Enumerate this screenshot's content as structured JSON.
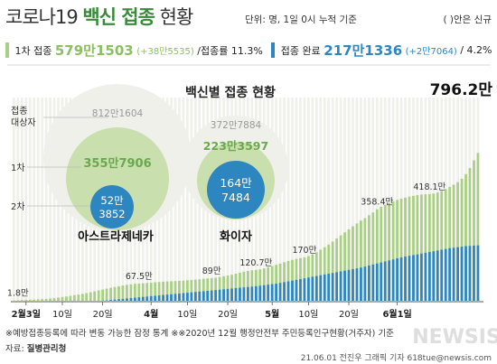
{
  "header": {
    "title_part1": "코로나19 ",
    "title_part2": "백신 접종",
    "title_part3": " 현황",
    "unit_note": "단위: 명, 1일 0시 누적 기준",
    "new_note": "( )안은 신규"
  },
  "stats": {
    "first_label": "1차 접종",
    "first_value": "579만1503",
    "first_new": "(+38만5535)",
    "first_rate": "/접종률 11.3%",
    "complete_label": "접종 완료",
    "complete_value": "217만1336",
    "complete_new": "(+2만7064)",
    "complete_rate": "/ 4.2%"
  },
  "vaccine_panel": {
    "title": "백신별 접종 현황",
    "row_labels": [
      "접종\n대상자",
      "1차",
      "2차"
    ],
    "astrazeneca": {
      "name": "아스트라제네카",
      "target": "812만1604",
      "first": "355만7906",
      "second_line1": "52만",
      "second_line2": "3852"
    },
    "pfizer": {
      "name": "화이자",
      "target": "372만7884",
      "first": "223만3597",
      "second_line1": "164만",
      "second_line2": "7484"
    }
  },
  "colors": {
    "first_dose": "#a9cf85",
    "second_dose": "#2e86c1",
    "target": "#f0f0eb",
    "axis": "#555555"
  },
  "chart_data": {
    "type": "bar",
    "title": "",
    "x_start": "2월26일",
    "series": [
      {
        "name": "1차 접종",
        "color": "#a9cf85",
        "values": [
          0.6,
          1.8,
          2.8,
          3.5,
          4.0,
          4.6,
          5.5,
          6.5,
          7.5,
          8.5,
          10.4,
          12.5,
          14.8,
          17.0,
          19.5,
          22.0,
          24.5,
          27.0,
          30.0,
          33.5,
          37.0,
          40.5,
          44.0,
          47.5,
          51.0,
          54.0,
          57.0,
          60.0,
          62.5,
          64.5,
          66.5,
          67.5,
          68.5,
          69.8,
          71.0,
          72.3,
          73.5,
          74.8,
          75.5,
          76.3,
          77.2,
          78.0,
          79.0,
          80.2,
          81.5,
          83.0,
          84.5,
          86.0,
          87.5,
          89.0,
          90.5,
          93.0,
          96.0,
          99.0,
          102.0,
          106.0,
          110.0,
          114.0,
          117.0,
          119.5,
          120.7,
          123.0,
          127.0,
          131.0,
          136.0,
          141.0,
          146.0,
          151.0,
          156.0,
          160.0,
          164.0,
          167.0,
          170.0,
          175.0,
          182.0,
          190.0,
          200.0,
          210.0,
          220.0,
          232.0,
          244.0,
          256.0,
          268.0,
          280.0,
          292.0,
          303.0,
          314.0,
          324.0,
          335.0,
          346.0,
          358.4,
          368.0,
          376.0,
          383.0,
          389.0,
          395.0,
          400.0,
          404.0,
          408.0,
          411.0,
          414.0,
          416.0,
          417.0,
          418.1,
          420.0,
          424.0,
          430.0,
          438.0,
          446.0,
          455.0,
          465.0,
          478.0,
          496.0,
          520.0,
          550.0,
          579.2
        ]
      },
      {
        "name": "접종 완료",
        "color": "#2e86c1",
        "values": [
          0,
          0,
          0,
          0,
          0,
          0,
          0,
          0,
          0,
          0,
          0,
          0,
          0,
          0,
          0,
          0,
          0,
          0,
          0,
          0,
          0,
          0,
          0.5,
          1.5,
          3.0,
          4.5,
          6.0,
          7.5,
          9.0,
          10.5,
          12.0,
          13.5,
          15.0,
          16.5,
          18.0,
          19.5,
          21.0,
          22.5,
          24.0,
          25.5,
          27.0,
          28.5,
          30.0,
          31.5,
          33.0,
          34.5,
          36.0,
          37.5,
          39.0,
          40.5,
          42.0,
          43.5,
          45.0,
          46.5,
          48.0,
          49.5,
          51.0,
          52.5,
          54.0,
          55.5,
          57.0,
          59.0,
          61.0,
          63.0,
          65.0,
          67.0,
          70.0,
          73.0,
          76.0,
          79.0,
          82.0,
          85.0,
          88.0,
          91.0,
          94.0,
          97.0,
          100.0,
          103.0,
          106.0,
          109.0,
          112.0,
          115.0,
          118.0,
          121.0,
          124.0,
          127.0,
          130.0,
          134.0,
          138.0,
          142.0,
          146.0,
          150.0,
          154.0,
          158.0,
          162.0,
          166.0,
          170.0,
          173.0,
          176.0,
          179.0,
          182.0,
          185.0,
          188.0,
          191.0,
          194.0,
          197.0,
          200.0,
          203.0,
          206.0,
          208.0,
          210.0,
          212.0,
          214.0,
          215.0,
          216.0,
          217.1
        ]
      }
    ],
    "target_total": 796.2,
    "target_total_label": "796.2만",
    "value_labels": [
      {
        "day_index": 1,
        "value": 1.8,
        "text": "1.8만"
      },
      {
        "day_index": 31,
        "value": 67.5,
        "text": "67.5만"
      },
      {
        "day_index": 49,
        "value": 89,
        "text": "89만"
      },
      {
        "day_index": 60,
        "value": 120.7,
        "text": "120.7만"
      },
      {
        "day_index": 72,
        "value": 170,
        "text": "170만"
      },
      {
        "day_index": 90,
        "value": 358.4,
        "text": "358.4만"
      },
      {
        "day_index": 103,
        "value": 418.1,
        "text": "418.1만"
      }
    ],
    "x_ticks": [
      {
        "day_index": 3,
        "text": "2월3일",
        "bold": true
      },
      {
        "day_index": 12,
        "text": "10일",
        "bold": false
      },
      {
        "day_index": 22,
        "text": "20일",
        "bold": false
      },
      {
        "day_index": 34,
        "text": "4월",
        "bold": true
      },
      {
        "day_index": 43,
        "text": "10일",
        "bold": false
      },
      {
        "day_index": 53,
        "text": "20일",
        "bold": false
      },
      {
        "day_index": 64,
        "text": "5월",
        "bold": true
      },
      {
        "day_index": 73,
        "text": "10일",
        "bold": false
      },
      {
        "day_index": 83,
        "text": "20일",
        "bold": false
      },
      {
        "day_index": 95,
        "text": "6월1일",
        "bold": true
      }
    ],
    "ylim": [
      0,
      800
    ]
  },
  "footer": {
    "note": "※예방접종등록에 따라 변동 가능한 잠정 통계  ※※2020년 12월 행정안전부 주민등록인구현황(거주자) 기준",
    "source_label": "자료: ",
    "source": "질병관리청",
    "credit": "21.06.01 전진우 그래픽 기자 618tue@newsis.com",
    "watermark": "NEWSIS"
  }
}
